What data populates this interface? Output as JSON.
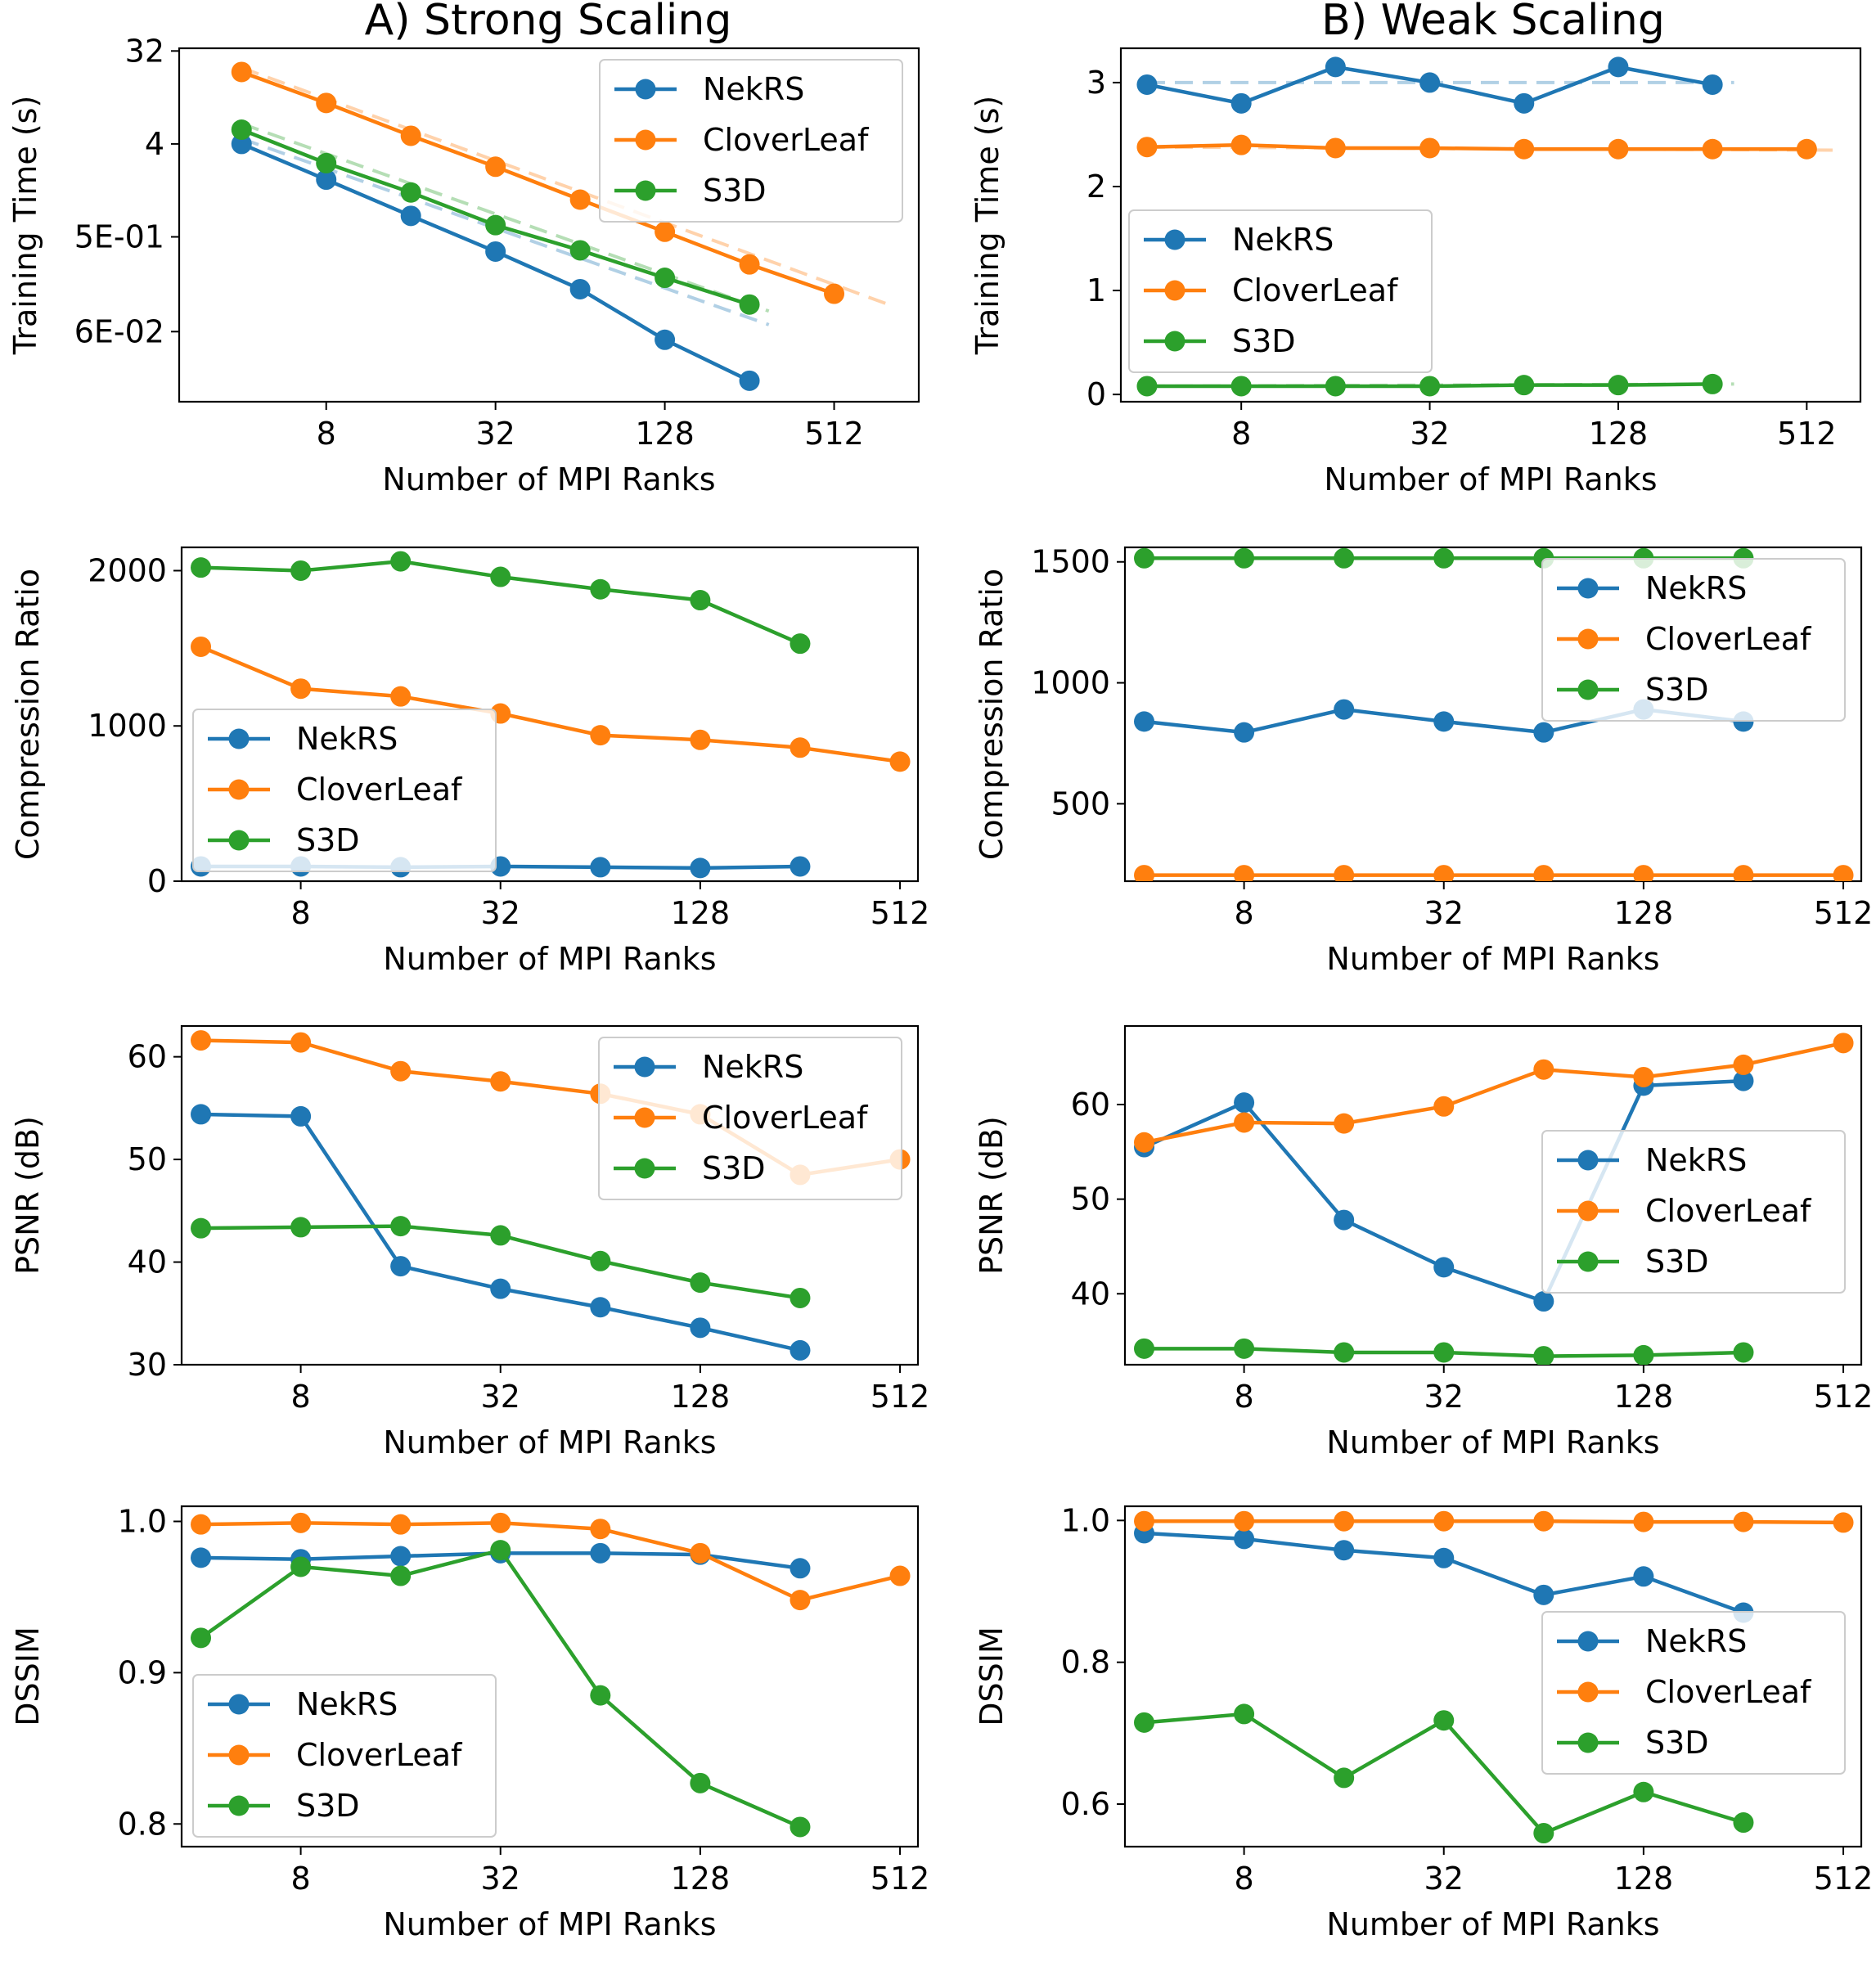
{
  "column_titles": [
    "A) Strong Scaling",
    "B) Weak Scaling"
  ],
  "colors": {
    "NekRS": "#1f77b4",
    "CloverLeaf": "#ff7f0e",
    "S3D": "#2ca02c"
  },
  "chart_data": [
    {
      "id": "strong-training",
      "type": "line",
      "column": 0,
      "row": 0,
      "xscale": "log2",
      "xlim": [
        2.4,
        1024
      ],
      "xticks": [
        8,
        32,
        128,
        512
      ],
      "xtick_labels": [
        "8",
        "32",
        "128",
        "512"
      ],
      "xlabel": "Number of MPI Ranks",
      "yscale": "log",
      "ylim": [
        0.0125,
        34
      ],
      "yticks": [
        0.06,
        0.5,
        4,
        32
      ],
      "ytick_labels": [
        "6E-02",
        "5E-01",
        "4",
        "32"
      ],
      "ylabel": "Training Time (s)",
      "legend_position": "top-right",
      "series": [
        {
          "name": "NekRS",
          "x": [
            4,
            8,
            16,
            32,
            64,
            128,
            256
          ],
          "y": [
            4.0,
            1.8,
            0.8,
            0.36,
            0.155,
            0.05,
            0.02
          ]
        },
        {
          "name": "CloverLeaf",
          "x": [
            4,
            8,
            16,
            32,
            64,
            128,
            256,
            512
          ],
          "y": [
            20,
            10,
            4.8,
            2.4,
            1.15,
            0.56,
            0.27,
            0.14
          ]
        },
        {
          "name": "S3D",
          "x": [
            4,
            8,
            16,
            32,
            64,
            128,
            256
          ],
          "y": [
            5.5,
            2.6,
            1.35,
            0.65,
            0.37,
            0.2,
            0.11
          ]
        }
      ],
      "fits": [
        {
          "name": "NekRS",
          "x": [
            4,
            300
          ],
          "y": [
            4.5,
            0.07
          ]
        },
        {
          "name": "CloverLeaf",
          "x": [
            4,
            800
          ],
          "y": [
            22,
            0.11
          ]
        },
        {
          "name": "S3D",
          "x": [
            4,
            300
          ],
          "y": [
            6.3,
            0.095
          ]
        }
      ]
    },
    {
      "id": "weak-training",
      "type": "line",
      "column": 1,
      "row": 0,
      "xscale": "log2",
      "xlim": [
        3.3,
        760
      ],
      "xticks": [
        8,
        32,
        128,
        512
      ],
      "xtick_labels": [
        "8",
        "32",
        "128",
        "512"
      ],
      "xlabel": "Number of MPI Ranks",
      "yscale": "linear",
      "ylim": [
        -0.07,
        3.33
      ],
      "yticks": [
        0,
        1,
        2,
        3
      ],
      "ytick_labels": [
        "0",
        "1",
        "2",
        "3"
      ],
      "ylabel": "Training Time (s)",
      "legend_position": "center-left",
      "series": [
        {
          "name": "NekRS",
          "x": [
            4,
            8,
            16,
            32,
            64,
            128,
            256
          ],
          "y": [
            2.98,
            2.8,
            3.15,
            3.0,
            2.8,
            3.15,
            2.98
          ]
        },
        {
          "name": "CloverLeaf",
          "x": [
            4,
            8,
            16,
            32,
            64,
            128,
            256,
            512
          ],
          "y": [
            2.38,
            2.4,
            2.37,
            2.37,
            2.36,
            2.36,
            2.36,
            2.36
          ]
        },
        {
          "name": "S3D",
          "x": [
            4,
            8,
            16,
            32,
            64,
            128,
            256
          ],
          "y": [
            0.08,
            0.08,
            0.08,
            0.08,
            0.09,
            0.09,
            0.1
          ]
        }
      ],
      "fits": [
        {
          "name": "NekRS",
          "x": [
            4,
            300
          ],
          "y": [
            3.0,
            3.0
          ]
        },
        {
          "name": "CloverLeaf",
          "x": [
            4,
            640
          ],
          "y": [
            2.38,
            2.35
          ]
        },
        {
          "name": "S3D",
          "x": [
            4,
            300
          ],
          "y": [
            0.08,
            0.1
          ]
        }
      ]
    },
    {
      "id": "strong-compression",
      "type": "line",
      "column": 0,
      "row": 1,
      "xscale": "log2",
      "xlim": [
        3.5,
        580
      ],
      "xticks": [
        8,
        32,
        128,
        512
      ],
      "xtick_labels": [
        "8",
        "32",
        "128",
        "512"
      ],
      "xlabel": "Number of MPI Ranks",
      "yscale": "linear",
      "ylim": [
        0,
        2150
      ],
      "yticks": [
        0,
        1000,
        2000
      ],
      "ytick_labels": [
        "0",
        "1000",
        "2000"
      ],
      "ylabel": "Compression Ratio",
      "legend_position": "lower-left",
      "series": [
        {
          "name": "NekRS",
          "x": [
            4,
            8,
            16,
            32,
            64,
            128,
            256
          ],
          "y": [
            95,
            95,
            90,
            95,
            90,
            85,
            95
          ]
        },
        {
          "name": "CloverLeaf",
          "x": [
            4,
            8,
            16,
            32,
            64,
            128,
            256,
            512
          ],
          "y": [
            1510,
            1240,
            1190,
            1080,
            940,
            910,
            860,
            770
          ]
        },
        {
          "name": "S3D",
          "x": [
            4,
            8,
            16,
            32,
            64,
            128,
            256
          ],
          "y": [
            2020,
            2000,
            2060,
            1960,
            1880,
            1810,
            1530
          ]
        }
      ]
    },
    {
      "id": "weak-compression",
      "type": "line",
      "column": 1,
      "row": 1,
      "xscale": "log2",
      "xlim": [
        3.5,
        580
      ],
      "xticks": [
        8,
        32,
        128,
        512
      ],
      "xtick_labels": [
        "8",
        "32",
        "128",
        "512"
      ],
      "xlabel": "Number of MPI Ranks",
      "yscale": "linear",
      "ylim": [
        180,
        1560
      ],
      "yticks": [
        500,
        1000,
        1500
      ],
      "ytick_labels": [
        "500",
        "1000",
        "1500"
      ],
      "ylabel": "Compression Ratio",
      "legend_position": "top-right",
      "series": [
        {
          "name": "NekRS",
          "x": [
            4,
            8,
            16,
            32,
            64,
            128,
            256
          ],
          "y": [
            840,
            795,
            890,
            840,
            795,
            890,
            840
          ]
        },
        {
          "name": "CloverLeaf",
          "x": [
            4,
            8,
            16,
            32,
            64,
            128,
            256,
            512
          ],
          "y": [
            205,
            205,
            205,
            205,
            205,
            205,
            205,
            205
          ]
        },
        {
          "name": "S3D",
          "x": [
            4,
            8,
            16,
            32,
            64,
            128,
            256
          ],
          "y": [
            1515,
            1515,
            1515,
            1515,
            1515,
            1515,
            1515
          ]
        }
      ]
    },
    {
      "id": "strong-psnr",
      "type": "line",
      "column": 0,
      "row": 2,
      "xscale": "log2",
      "xlim": [
        3.5,
        580
      ],
      "xticks": [
        8,
        32,
        128,
        512
      ],
      "xtick_labels": [
        "8",
        "32",
        "128",
        "512"
      ],
      "xlabel": "Number of MPI Ranks",
      "yscale": "linear",
      "ylim": [
        30,
        63
      ],
      "yticks": [
        30,
        40,
        50,
        60
      ],
      "ytick_labels": [
        "30",
        "40",
        "50",
        "60"
      ],
      "ylabel": "PSNR (dB)",
      "legend_position": "top-right",
      "series": [
        {
          "name": "NekRS",
          "x": [
            4,
            8,
            16,
            32,
            64,
            128,
            256
          ],
          "y": [
            54.4,
            54.2,
            39.6,
            37.4,
            35.6,
            33.6,
            31.4
          ]
        },
        {
          "name": "CloverLeaf",
          "x": [
            4,
            8,
            16,
            32,
            64,
            128,
            256,
            512
          ],
          "y": [
            61.6,
            61.4,
            58.6,
            57.6,
            56.4,
            54.4,
            48.5,
            50.0
          ]
        },
        {
          "name": "S3D",
          "x": [
            4,
            8,
            16,
            32,
            64,
            128,
            256
          ],
          "y": [
            43.3,
            43.4,
            43.5,
            42.6,
            40.1,
            38.0,
            36.5
          ]
        }
      ]
    },
    {
      "id": "weak-psnr",
      "type": "line",
      "column": 1,
      "row": 2,
      "xscale": "log2",
      "xlim": [
        3.5,
        580
      ],
      "xticks": [
        8,
        32,
        128,
        512
      ],
      "xtick_labels": [
        "8",
        "32",
        "128",
        "512"
      ],
      "xlabel": "Number of MPI Ranks",
      "yscale": "linear",
      "ylim": [
        32.5,
        68.3
      ],
      "yticks": [
        40,
        50,
        60
      ],
      "ytick_labels": [
        "40",
        "50",
        "60"
      ],
      "ylabel": "PSNR (dB)",
      "legend_position": "center-right",
      "series": [
        {
          "name": "NekRS",
          "x": [
            4,
            8,
            16,
            32,
            64,
            128,
            256
          ],
          "y": [
            55.5,
            60.2,
            47.8,
            42.8,
            39.2,
            62.0,
            62.5
          ]
        },
        {
          "name": "CloverLeaf",
          "x": [
            4,
            8,
            16,
            32,
            64,
            128,
            256,
            512
          ],
          "y": [
            56.0,
            58.1,
            58.0,
            59.8,
            63.7,
            62.9,
            64.2,
            66.5
          ]
        },
        {
          "name": "S3D",
          "x": [
            4,
            8,
            16,
            32,
            64,
            128,
            256
          ],
          "y": [
            34.2,
            34.2,
            33.8,
            33.8,
            33.4,
            33.5,
            33.8
          ]
        }
      ]
    },
    {
      "id": "strong-dssim",
      "type": "line",
      "column": 0,
      "row": 3,
      "xscale": "log2",
      "xlim": [
        3.5,
        580
      ],
      "xticks": [
        8,
        32,
        128,
        512
      ],
      "xtick_labels": [
        "8",
        "32",
        "128",
        "512"
      ],
      "xlabel": "Number of MPI Ranks",
      "yscale": "linear",
      "ylim": [
        0.785,
        1.01
      ],
      "yticks": [
        0.8,
        0.9,
        1.0
      ],
      "ytick_labels": [
        "0.8",
        "0.9",
        "1.0"
      ],
      "ylabel": "DSSIM",
      "legend_position": "lower-left",
      "series": [
        {
          "name": "NekRS",
          "x": [
            4,
            8,
            16,
            32,
            64,
            128,
            256
          ],
          "y": [
            0.976,
            0.975,
            0.977,
            0.979,
            0.979,
            0.978,
            0.969
          ]
        },
        {
          "name": "CloverLeaf",
          "x": [
            4,
            8,
            16,
            32,
            64,
            128,
            256,
            512
          ],
          "y": [
            0.998,
            0.999,
            0.998,
            0.999,
            0.995,
            0.979,
            0.948,
            0.964
          ]
        },
        {
          "name": "S3D",
          "x": [
            4,
            8,
            16,
            32,
            64,
            128,
            256
          ],
          "y": [
            0.923,
            0.97,
            0.964,
            0.981,
            0.885,
            0.827,
            0.798
          ]
        }
      ]
    },
    {
      "id": "weak-dssim",
      "type": "line",
      "column": 1,
      "row": 3,
      "xscale": "log2",
      "xlim": [
        3.5,
        580
      ],
      "xticks": [
        8,
        32,
        128,
        512
      ],
      "xtick_labels": [
        "8",
        "32",
        "128",
        "512"
      ],
      "xlabel": "Number of MPI Ranks",
      "yscale": "linear",
      "ylim": [
        0.54,
        1.02
      ],
      "yticks": [
        0.6,
        0.8,
        1.0
      ],
      "ytick_labels": [
        "0.6",
        "0.8",
        "1.0"
      ],
      "ylabel": "DSSIM",
      "legend_position": "center-right",
      "series": [
        {
          "name": "NekRS",
          "x": [
            4,
            8,
            16,
            32,
            64,
            128,
            256
          ],
          "y": [
            0.982,
            0.974,
            0.958,
            0.947,
            0.895,
            0.921,
            0.87
          ]
        },
        {
          "name": "CloverLeaf",
          "x": [
            4,
            8,
            16,
            32,
            64,
            128,
            256,
            512
          ],
          "y": [
            0.999,
            0.999,
            0.999,
            0.999,
            0.999,
            0.998,
            0.998,
            0.997
          ]
        },
        {
          "name": "S3D",
          "x": [
            4,
            8,
            16,
            32,
            64,
            128,
            256
          ],
          "y": [
            0.715,
            0.727,
            0.637,
            0.718,
            0.559,
            0.617,
            0.574
          ]
        }
      ]
    }
  ]
}
